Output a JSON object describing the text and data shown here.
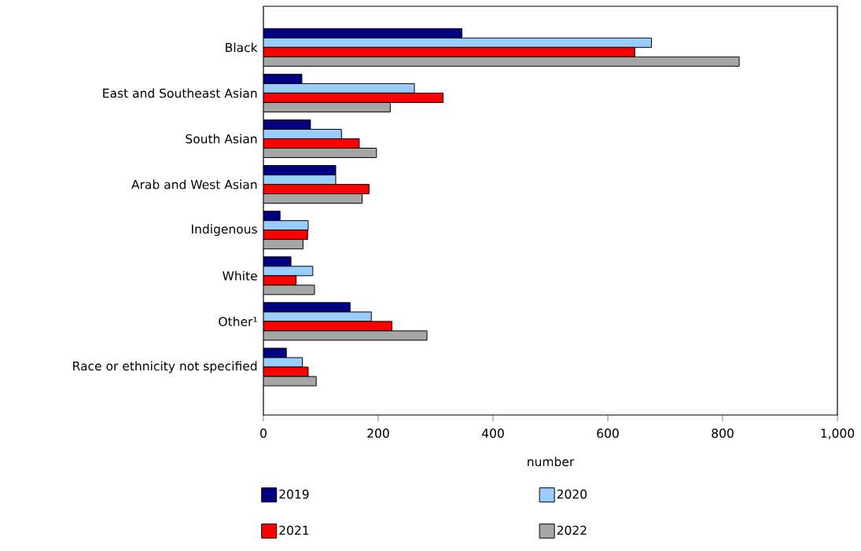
{
  "chart_data": {
    "type": "bar",
    "orientation": "horizontal",
    "xlabel": "number",
    "categories": [
      "Black",
      "East and Southeast Asian",
      "South Asian",
      "Arab and West Asian",
      "Indigenous",
      "White",
      "Other¹",
      "Race or ethnicity not specified"
    ],
    "series": [
      {
        "name": "2019",
        "color": "#000080",
        "values": [
          346,
          67,
          82,
          126,
          29,
          48,
          151,
          40
        ]
      },
      {
        "name": "2020",
        "color": "#99ccff",
        "values": [
          676,
          263,
          136,
          126,
          78,
          86,
          188,
          68
        ]
      },
      {
        "name": "2021",
        "color": "#ff0000",
        "values": [
          647,
          313,
          167,
          184,
          77,
          57,
          224,
          78
        ]
      },
      {
        "name": "2022",
        "color": "#a6a6a6",
        "values": [
          829,
          221,
          197,
          172,
          69,
          89,
          285,
          92
        ]
      }
    ],
    "xlim": [
      0,
      1000
    ],
    "xticks": [
      0,
      200,
      400,
      600,
      800,
      {
        "value": 1000,
        "label": "1,000"
      }
    ],
    "legend": "bottom",
    "grid": false
  }
}
